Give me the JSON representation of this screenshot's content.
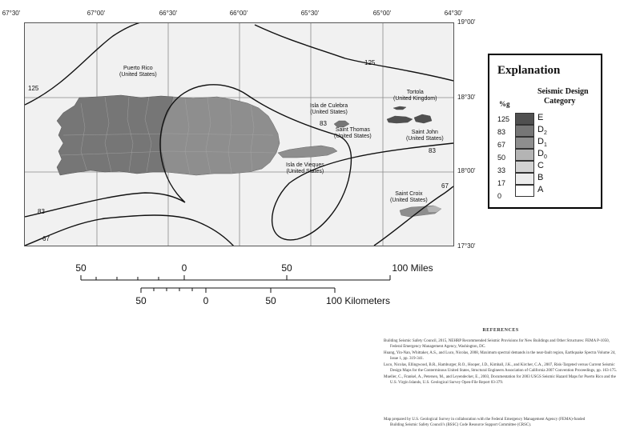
{
  "longitudes": [
    "67°30'",
    "67°00'",
    "66°30'",
    "66°00'",
    "65°30'",
    "65°00'",
    "64°30'"
  ],
  "latitudes": [
    "19°00'",
    "18°30'",
    "18°00'",
    "17°30'"
  ],
  "places": {
    "puerto_rico": [
      "Puerto Rico",
      "(United States)"
    ],
    "culebra": [
      "Isla de Culebra",
      "(United States)"
    ],
    "tortola": [
      "Tortola",
      "(United Kingdom)"
    ],
    "st_thomas": [
      "Saint Thomas",
      "(United States)"
    ],
    "st_john": [
      "Saint John",
      "(United States)"
    ],
    "vieques": [
      "Isla de Vieques",
      "(United States)"
    ],
    "st_croix": [
      "Saint Croix",
      "(United States)"
    ]
  },
  "contour_labels": {
    "c125_left": "125",
    "c125_right": "125",
    "c83_left": "83",
    "c83_mid": "83",
    "c83_right": "83",
    "c67_left": "67",
    "c67_right": "67"
  },
  "colors": {
    "E": "#505050",
    "D2": "#767676",
    "D1": "#8e8e8e",
    "D0": "#b4b4b4",
    "C": "#d2d2d2",
    "B": "#ececec",
    "A": "#ffffff"
  },
  "explanation": {
    "title": "Explanation",
    "subtitle_1": "Seismic Design",
    "subtitle_2": "Category",
    "unit": "%g",
    "thresholds": [
      "125",
      "83",
      "67",
      "50",
      "33",
      "17",
      "0"
    ],
    "categories": [
      {
        "label": "E",
        "sub": ""
      },
      {
        "label": "D",
        "sub": "2"
      },
      {
        "label": "D",
        "sub": "1"
      },
      {
        "label": "D",
        "sub": "0"
      },
      {
        "label": "C",
        "sub": ""
      },
      {
        "label": "B",
        "sub": ""
      },
      {
        "label": "A",
        "sub": ""
      }
    ]
  },
  "scale": {
    "miles_labels": [
      "50",
      "0",
      "50",
      "100 Miles"
    ],
    "km_labels": [
      "50",
      "0",
      "50",
      "100 Kilometers"
    ]
  },
  "references": {
    "title": "REFERENCES",
    "items": [
      "Building Seismic Safety Council, 2015, NEHRP Recommended Seismic Provisions for New Buildings and Other Structures: FEMA P-1050, Federal Emergency Management Agency, Washington, DC.",
      "Huang, Yin-Nan, Whittaker, A.S., and Luco, Nicolas, 2008, Maximum spectral demands in the near-fault region, Earthquake Spectra Volume 24, Issue 1, pp. 319-341.",
      "Luco, Nicolas, Ellingwood, B.R., Hamburger, R.O., Hooper, J.D., Kimball, J.K., and Kircher, C.A., 2007, Risk-Targeted versus Current Seismic Design Maps for the Conterminous United States, Structural Engineers Association of California 2007 Convention Proceedings, pp. 163-175.",
      "Mueller, C., Frankel, A., Petersen, M., and Leyendecker, E., 2003, Documentation for 2003 USGS Seismic Hazard Maps for Puerto Rico and the U.S. Virgin Islands, U.S. Geological Survey Open-File Report 03-379."
    ]
  },
  "credit": "Map prepared by U.S. Geological Survey in collaboration with the Federal Emergency Management Agency (FEMA)-funded Building Seismic Safety Council's (BSSC) Code Resource Support Committee (CRSC)."
}
